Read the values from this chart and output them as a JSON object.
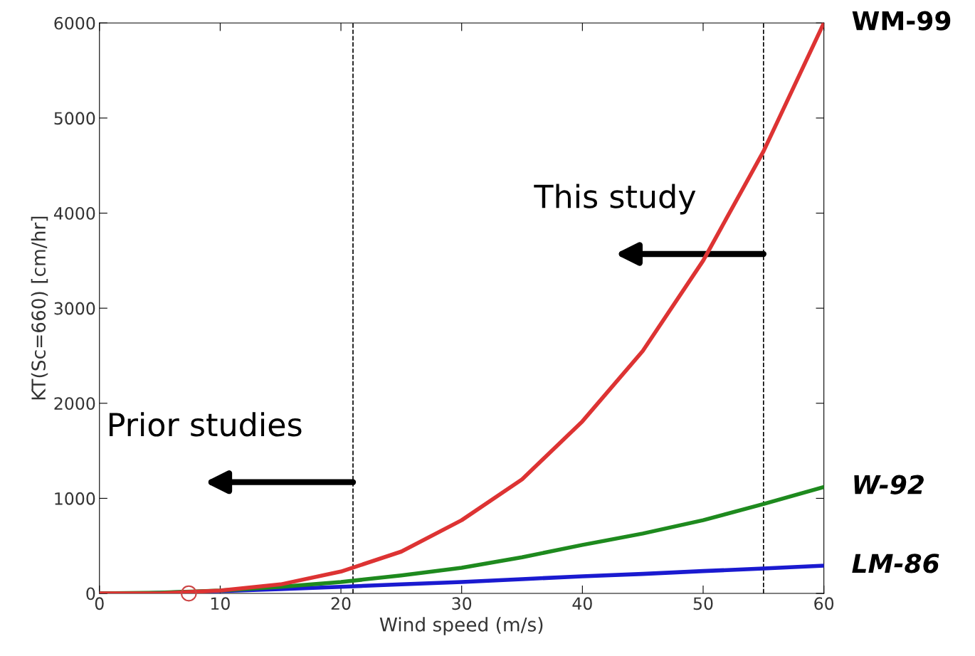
{
  "chart_data": {
    "type": "line",
    "xlabel": "Wind speed (m/s)",
    "ylabel": "KT(Sc=660) [cm/hr]",
    "xlim": [
      0,
      60
    ],
    "ylim": [
      0,
      6000
    ],
    "xticks": [
      0,
      10,
      20,
      30,
      40,
      50,
      60
    ],
    "yticks": [
      0,
      1000,
      2000,
      3000,
      4000,
      5000,
      6000
    ],
    "grid": false,
    "line_style": "solid",
    "marker": "none",
    "series": [
      {
        "name": "WM-99",
        "color": "#dd3333",
        "x": [
          0,
          5,
          10,
          15,
          20,
          25,
          30,
          35,
          40,
          45,
          50,
          55,
          60
        ],
        "values": [
          0,
          0,
          30,
          95,
          230,
          440,
          770,
          1200,
          1810,
          2550,
          3500,
          4650,
          6000
        ]
      },
      {
        "name": "W-92",
        "color": "#1e8a1e",
        "x": [
          0,
          5,
          10,
          15,
          20,
          25,
          30,
          35,
          40,
          45,
          50,
          55,
          60
        ],
        "values": [
          0,
          8,
          30,
          70,
          120,
          190,
          270,
          380,
          510,
          630,
          770,
          940,
          1120
        ]
      },
      {
        "name": "LM-86",
        "color": "#1a1ad0",
        "x": [
          0,
          3.6,
          10,
          15,
          20,
          25,
          30,
          35,
          40,
          45,
          50,
          55,
          60
        ],
        "values": [
          0,
          0,
          25,
          45,
          70,
          95,
          120,
          150,
          180,
          205,
          235,
          262,
          292
        ]
      },
      {
        "type": "scatter",
        "color": "#cc4444",
        "marker": "circle",
        "x": [
          7.4
        ],
        "values": [
          0
        ]
      }
    ],
    "ref_lines": [
      {
        "axis": "x",
        "value": 21,
        "color": "#000000",
        "line_style": "dashed"
      },
      {
        "axis": "x",
        "value": 55,
        "color": "#000000",
        "line_style": "dashed"
      }
    ],
    "annotations": [
      {
        "text": "Prior studies",
        "x": 21,
        "y": 1170
      },
      {
        "text": "This study",
        "x": 55,
        "y": 3570
      }
    ]
  }
}
